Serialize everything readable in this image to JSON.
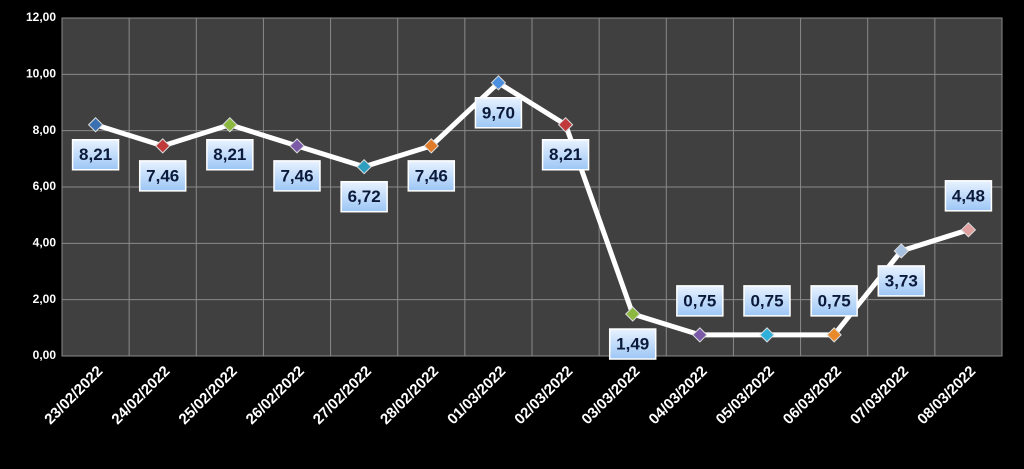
{
  "chart_data": {
    "type": "line",
    "categories": [
      "23/02/2022",
      "24/02/2022",
      "25/02/2022",
      "26/02/2022",
      "27/02/2022",
      "28/02/2022",
      "01/03/2022",
      "02/03/2022",
      "03/03/2022",
      "04/03/2022",
      "05/03/2022",
      "06/03/2022",
      "07/03/2022",
      "08/03/2022"
    ],
    "values": [
      8.21,
      7.46,
      8.21,
      7.46,
      6.72,
      7.46,
      9.7,
      8.21,
      1.49,
      0.75,
      0.75,
      0.75,
      3.73,
      4.48
    ],
    "value_labels": [
      "8,21",
      "7,46",
      "8,21",
      "7,46",
      "6,72",
      "7,46",
      "9,70",
      "8,21",
      "1,49",
      "0,75",
      "0,75",
      "0,75",
      "3,73",
      "4,48"
    ],
    "color": "#ffffff",
    "marker_colors": [
      "#3a6fb0",
      "#c0393b",
      "#8db83f",
      "#7a5aa6",
      "#2f9fc0",
      "#e07b28",
      "#4a8fe0",
      "#c0393b",
      "#8db83f",
      "#7a5aa6",
      "#2fb0d8",
      "#e88a2a",
      "#a8c0e0",
      "#e0a0a0"
    ],
    "ylim": [
      0,
      12
    ],
    "yticks": [
      {
        "value": 0,
        "label": "0,00"
      },
      {
        "value": 2,
        "label": "2,00"
      },
      {
        "value": 4,
        "label": "4,00"
      },
      {
        "value": 6,
        "label": "6,00"
      },
      {
        "value": 8,
        "label": "8,00"
      },
      {
        "value": 10,
        "label": "10,00"
      },
      {
        "value": 12,
        "label": "12,00"
      }
    ],
    "grid": true
  }
}
